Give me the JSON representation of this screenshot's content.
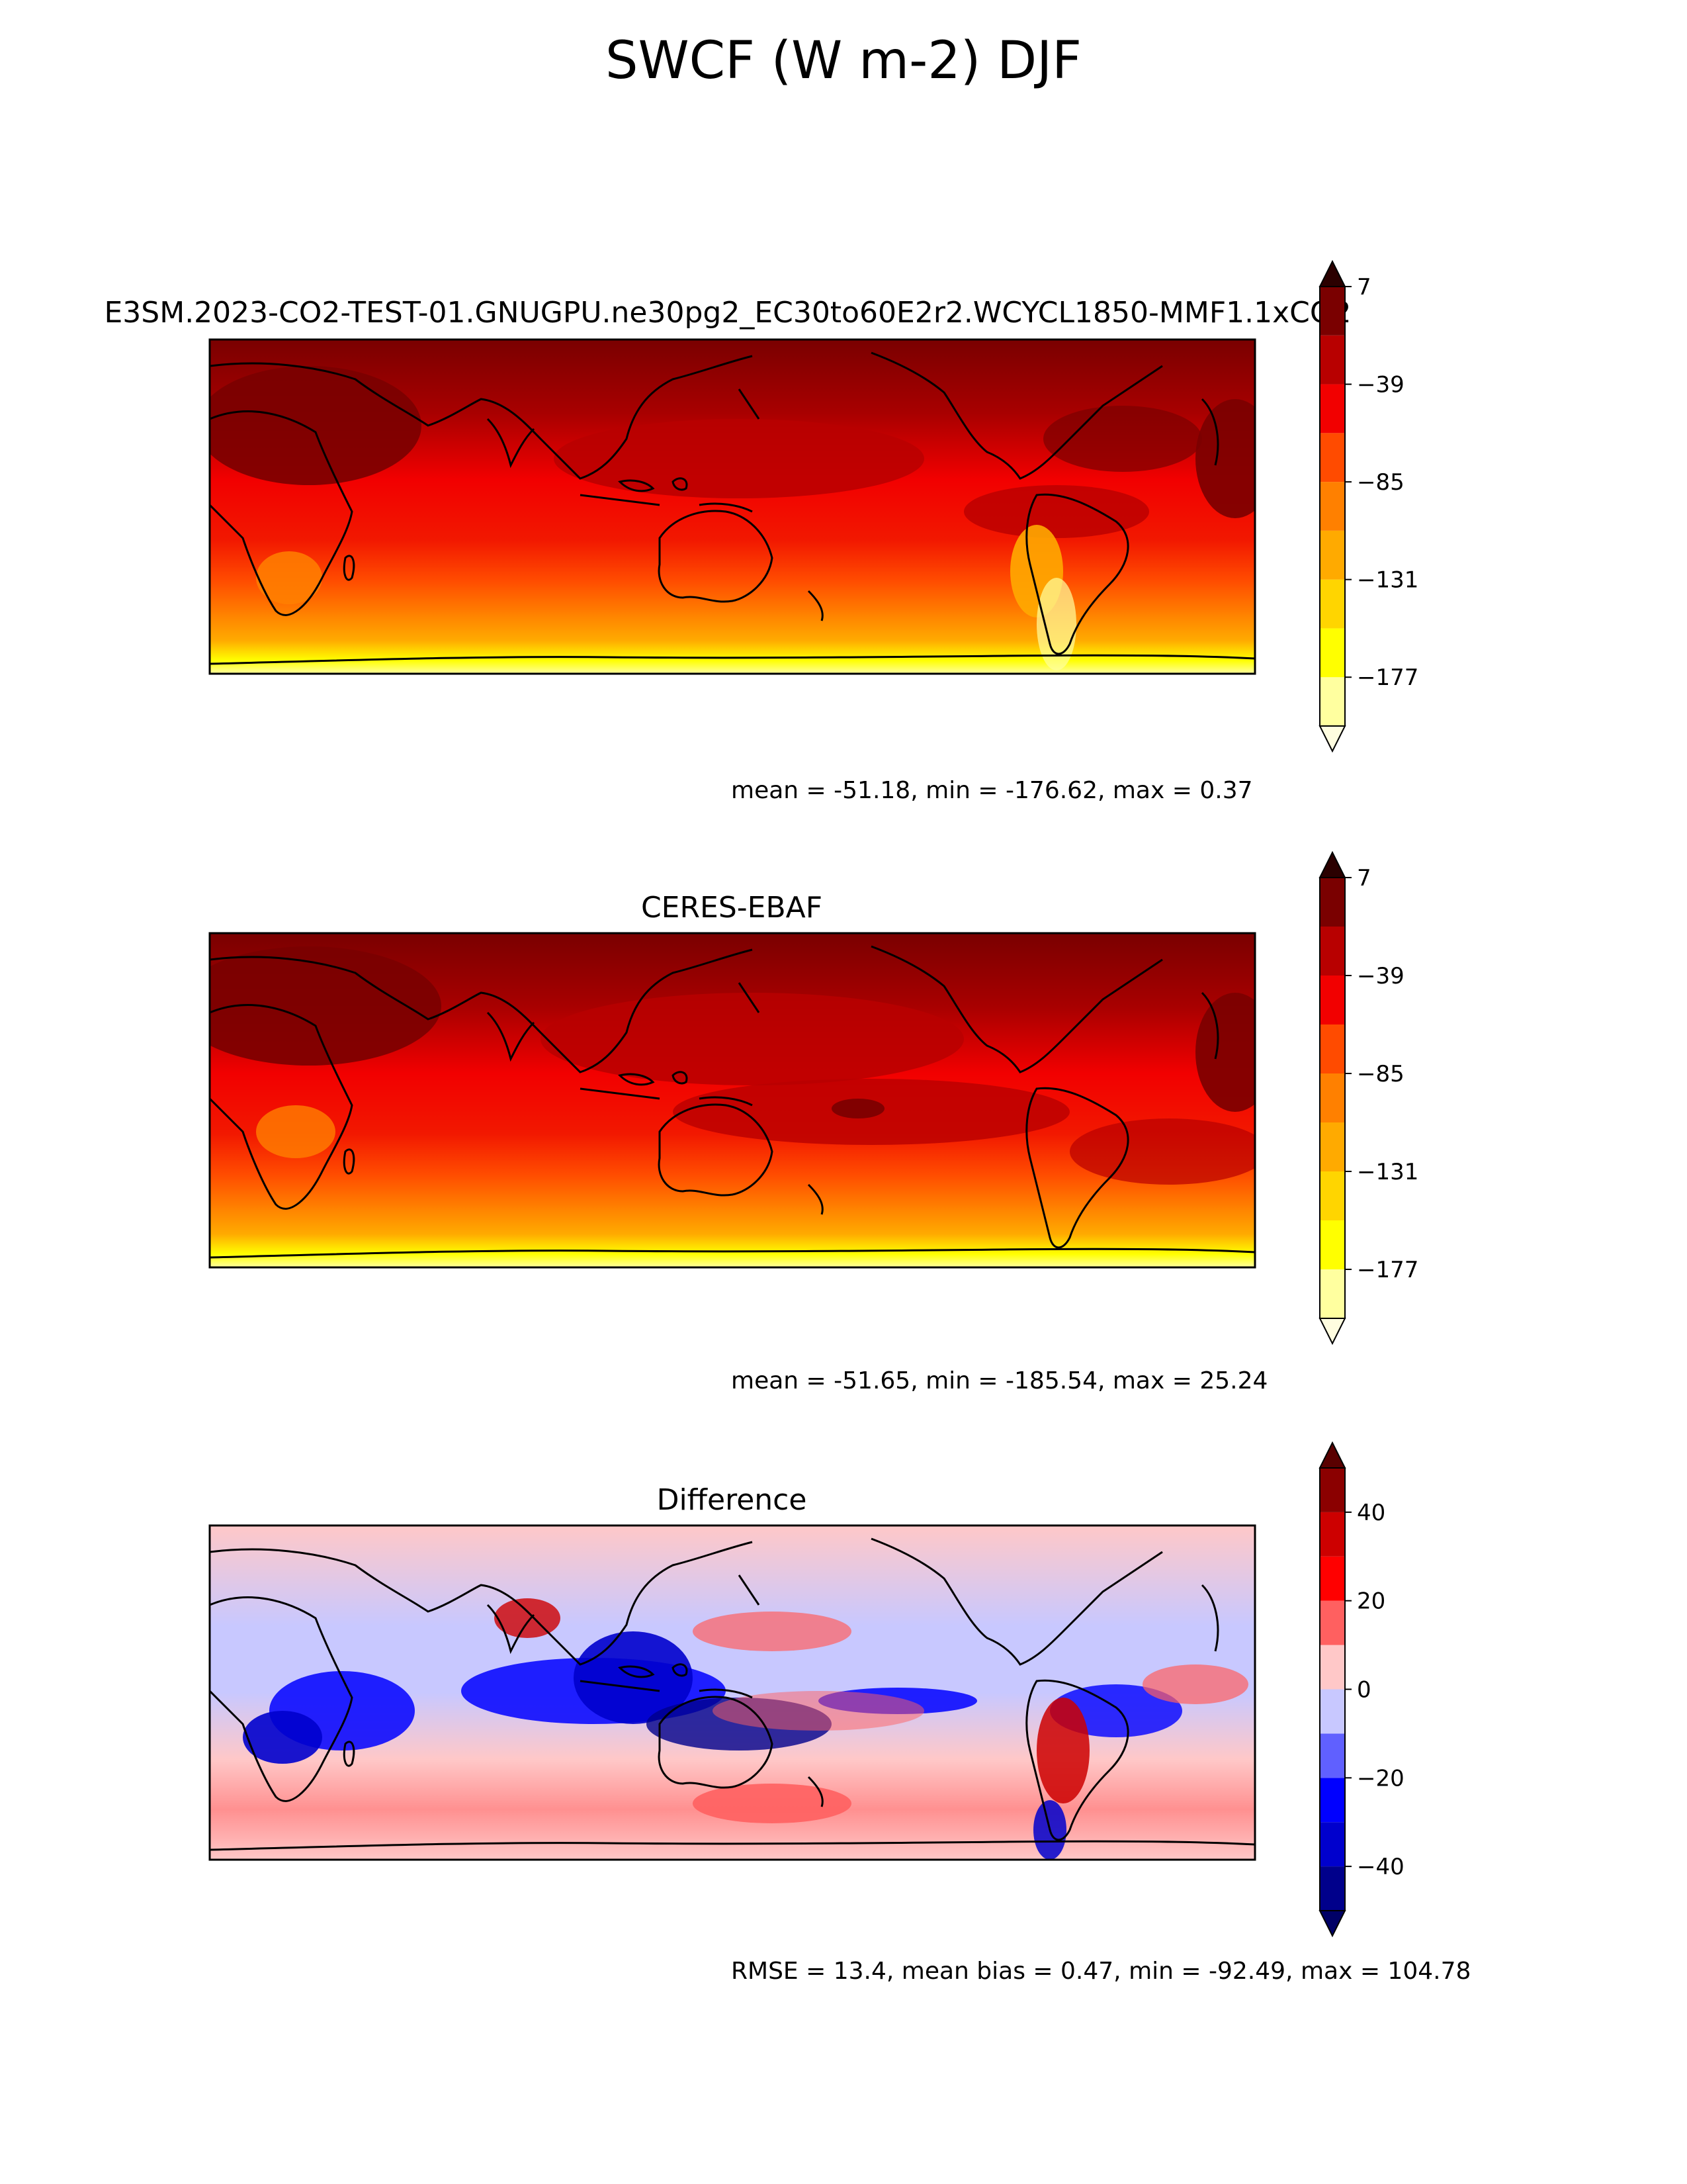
{
  "figure": {
    "title": "SWCF (W m-2) DJF"
  },
  "chart_data": [
    {
      "type": "heatmap",
      "title": "E3SM.2023-CO2-TEST-01.GNUGPU.ne30pg2_EC30to60E2r2.WCYCL1850-MMF1.1xCO2",
      "map": "global filled-contour map with coastlines",
      "colorbar": {
        "levels": [
          -200,
          -177,
          -154,
          -131,
          -108,
          -85,
          -62,
          -39,
          -16,
          7
        ],
        "ticks": [
          7,
          -39,
          -85,
          -131,
          -177
        ],
        "tick_labels": [
          "7",
          "−39",
          "−85",
          "−131",
          "−177"
        ],
        "colors": [
          "#fffde0",
          "#ffff9f",
          "#ffff00",
          "#ffd500",
          "#ffaa00",
          "#ff8000",
          "#ff4b00",
          "#f20000",
          "#b80000",
          "#7a0000",
          "#2b0000"
        ],
        "extend": "both"
      },
      "stats": "mean = -51.18, min = -176.62, max = 0.37"
    },
    {
      "type": "heatmap",
      "title": "CERES-EBAF",
      "map": "global filled-contour map with coastlines",
      "colorbar": {
        "levels": [
          -200,
          -177,
          -154,
          -131,
          -108,
          -85,
          -62,
          -39,
          -16,
          7
        ],
        "ticks": [
          7,
          -39,
          -85,
          -131,
          -177
        ],
        "tick_labels": [
          "7",
          "−39",
          "−85",
          "−131",
          "−177"
        ],
        "colors": [
          "#fffde0",
          "#ffff9f",
          "#ffff00",
          "#ffd500",
          "#ffaa00",
          "#ff8000",
          "#ff4b00",
          "#f20000",
          "#b80000",
          "#7a0000",
          "#2b0000"
        ],
        "extend": "both"
      },
      "stats": "mean = -51.65, min = -185.54, max = 25.24"
    },
    {
      "type": "heatmap",
      "title": "Difference",
      "map": "global filled-contour map with coastlines",
      "colorbar": {
        "levels": [
          -50,
          -40,
          -30,
          -20,
          -10,
          0,
          10,
          20,
          30,
          40,
          50
        ],
        "ticks": [
          40,
          20,
          0,
          -20,
          -40
        ],
        "tick_labels": [
          "40",
          "20",
          "0",
          "−20",
          "−40"
        ],
        "colors": [
          "#000066",
          "#00008b",
          "#0000cd",
          "#0000ff",
          "#6060ff",
          "#c8c8ff",
          "#ffc8c8",
          "#ff6060",
          "#ff0000",
          "#cd0000",
          "#8b0000",
          "#5a0000"
        ],
        "extend": "both"
      },
      "stats": "RMSE = 13.4, mean bias = 0.47, min = -92.49, max = 104.78"
    }
  ]
}
